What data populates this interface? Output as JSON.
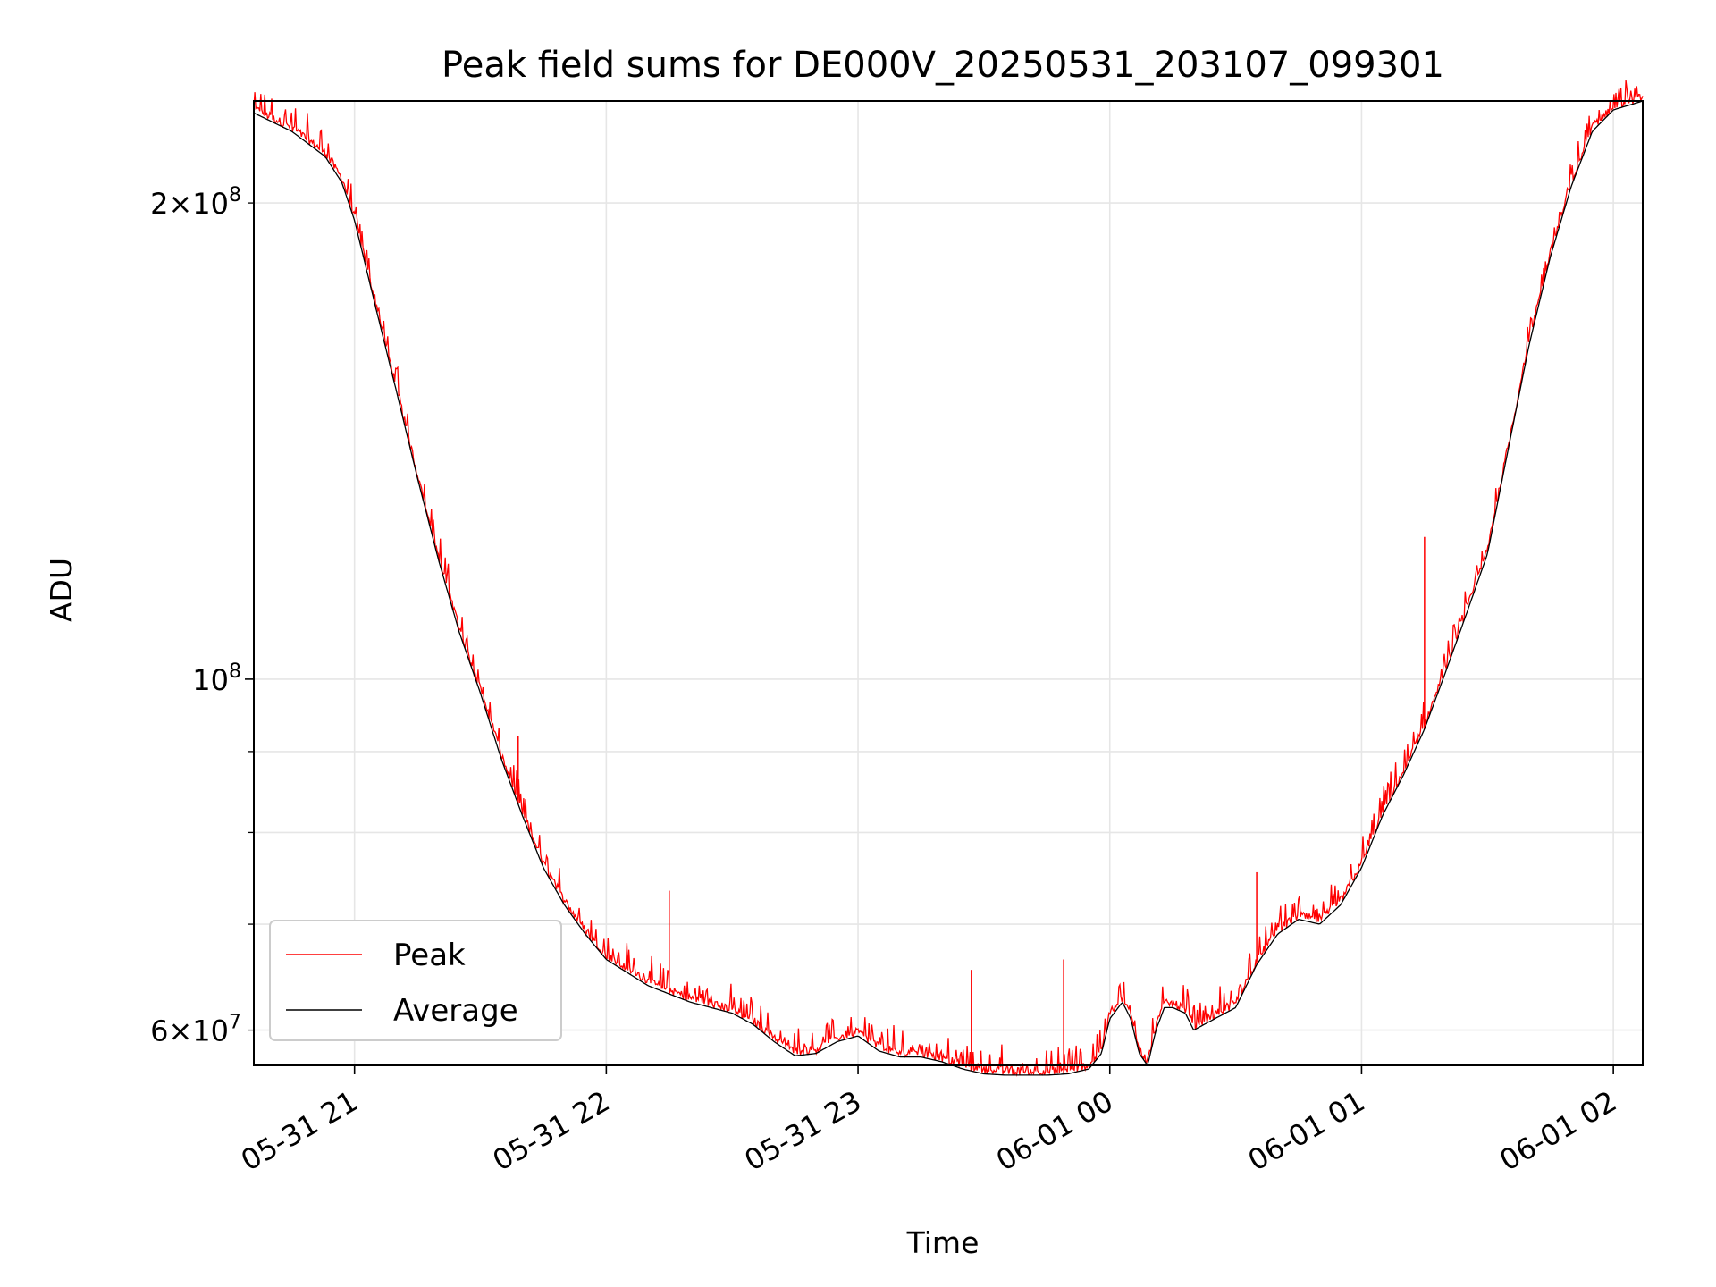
{
  "chart_data": {
    "type": "line",
    "title": "Peak field sums for DE000V_20250531_203107_099301",
    "xlabel": "Time",
    "ylabel": "ADU",
    "y_scale": "log",
    "grid": true,
    "legend_placement": "lower-left",
    "xlim": [
      "2025-05-31 20:36",
      "2025-06-01 02:07"
    ],
    "ylim": [
      57000000,
      232000000
    ],
    "x_ticks": [
      {
        "t": "2025-05-31 21:00",
        "label": "05-31 21"
      },
      {
        "t": "2025-05-31 22:00",
        "label": "05-31 22"
      },
      {
        "t": "2025-05-31 23:00",
        "label": "05-31 23"
      },
      {
        "t": "2025-06-01 00:00",
        "label": "06-01 00"
      },
      {
        "t": "2025-06-01 01:00",
        "label": "06-01 01"
      },
      {
        "t": "2025-06-01 02:00",
        "label": "06-01 02"
      }
    ],
    "y_ticks_major": [
      {
        "value": 100000000,
        "base": "10",
        "exp": "8"
      }
    ],
    "y_ticks_minor_labeled": [
      {
        "value": 60000000,
        "mant": "6",
        "exp": "7"
      },
      {
        "value": 200000000,
        "mant": "2",
        "exp": "8"
      }
    ],
    "y_ticks_minor_unlabeled": [
      70000000,
      80000000,
      90000000
    ],
    "series": [
      {
        "name": "Average",
        "color": "#000000",
        "x": [
          "2025-05-31 20:36",
          "2025-05-31 20:45",
          "2025-05-31 20:53",
          "2025-05-31 20:57",
          "2025-05-31 21:00",
          "2025-05-31 21:05",
          "2025-05-31 21:10",
          "2025-05-31 21:15",
          "2025-05-31 21:20",
          "2025-05-31 21:25",
          "2025-05-31 21:30",
          "2025-05-31 21:35",
          "2025-05-31 21:40",
          "2025-05-31 21:45",
          "2025-05-31 21:50",
          "2025-05-31 21:55",
          "2025-05-31 22:00",
          "2025-05-31 22:10",
          "2025-05-31 22:20",
          "2025-05-31 22:30",
          "2025-05-31 22:35",
          "2025-05-31 22:40",
          "2025-05-31 22:45",
          "2025-05-31 22:50",
          "2025-05-31 22:55",
          "2025-05-31 23:00",
          "2025-05-31 23:05",
          "2025-05-31 23:10",
          "2025-05-31 23:15",
          "2025-05-31 23:20",
          "2025-05-31 23:25",
          "2025-05-31 23:30",
          "2025-05-31 23:35",
          "2025-05-31 23:40",
          "2025-05-31 23:45",
          "2025-05-31 23:50",
          "2025-05-31 23:55",
          "2025-05-31 23:58",
          "2025-06-01 00:00",
          "2025-06-01 00:03",
          "2025-06-01 00:05",
          "2025-06-01 00:07",
          "2025-06-01 00:09",
          "2025-06-01 00:11",
          "2025-06-01 00:13",
          "2025-06-01 00:15",
          "2025-06-01 00:18",
          "2025-06-01 00:20",
          "2025-06-01 00:25",
          "2025-06-01 00:30",
          "2025-06-01 00:35",
          "2025-06-01 00:40",
          "2025-06-01 00:45",
          "2025-06-01 00:50",
          "2025-06-01 00:55",
          "2025-06-01 01:00",
          "2025-06-01 01:05",
          "2025-06-01 01:10",
          "2025-06-01 01:15",
          "2025-06-01 01:20",
          "2025-06-01 01:25",
          "2025-06-01 01:30",
          "2025-06-01 01:35",
          "2025-06-01 01:40",
          "2025-06-01 01:45",
          "2025-06-01 01:50",
          "2025-06-01 01:55",
          "2025-06-01 02:00",
          "2025-06-01 02:07"
        ],
        "values": [
          228000000,
          222000000,
          214000000,
          206000000,
          195000000,
          172000000,
          152000000,
          134000000,
          119000000,
          107000000,
          98000000,
          89000000,
          82000000,
          76000000,
          72000000,
          69000000,
          66500000,
          64000000,
          62500000,
          61500000,
          60500000,
          59000000,
          57800000,
          58000000,
          59000000,
          59500000,
          58200000,
          57700000,
          57700000,
          57300000,
          56700000,
          56300000,
          56200000,
          56200000,
          56200000,
          56300000,
          56700000,
          58000000,
          61000000,
          62500000,
          61000000,
          58000000,
          57000000,
          60000000,
          62000000,
          62000000,
          61500000,
          60000000,
          61000000,
          62000000,
          66000000,
          69000000,
          70500000,
          70000000,
          72000000,
          76000000,
          82000000,
          87000000,
          93000000,
          101000000,
          110000000,
          120000000,
          140000000,
          163000000,
          185000000,
          205000000,
          222000000,
          229000000,
          232000000
        ]
      },
      {
        "name": "Peak",
        "color": "#ff0000",
        "spikes": [
          {
            "t": "2025-05-31 21:39",
            "value": 92000000
          },
          {
            "t": "2025-05-31 22:15",
            "value": 73500000
          },
          {
            "t": "2025-05-31 23:27",
            "value": 65500000
          },
          {
            "t": "2025-05-31 23:49",
            "value": 66500000
          },
          {
            "t": "2025-06-01 00:35",
            "value": 75500000
          },
          {
            "t": "2025-06-01 01:15",
            "value": 123000000
          }
        ]
      }
    ]
  }
}
